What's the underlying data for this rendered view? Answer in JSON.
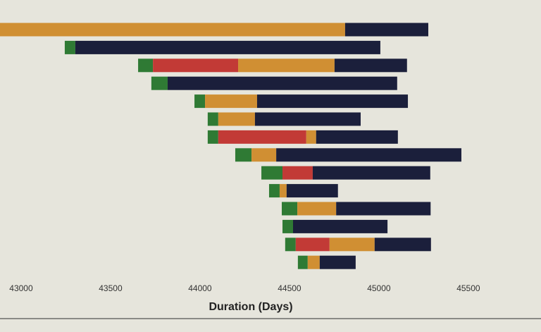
{
  "chart_data": {
    "type": "gantt-bar",
    "x_label": "Duration (Days)",
    "categories": [
      null,
      null,
      null,
      null,
      null,
      null,
      null,
      null,
      null,
      null,
      null,
      null,
      null,
      null
    ],
    "series": [
      {
        "color": "transparent",
        "values": [
          42882,
          43244,
          43654,
          43728,
          43969,
          44043,
          44043,
          44197,
          44343,
          44386,
          44457,
          44461,
          44476,
          44547
        ]
      },
      {
        "color": "#2f7a34",
        "values": [
          null,
          59,
          83,
          91,
          59,
          59,
          59,
          91,
          118,
          59,
          87,
          59,
          59,
          55
        ]
      },
      {
        "color": "#c23a36",
        "values": [
          null,
          null,
          476,
          null,
          null,
          null,
          492,
          null,
          169,
          null,
          null,
          null,
          189,
          null
        ]
      },
      {
        "color": "#d08f33",
        "values": [
          1929,
          null,
          539,
          null,
          291,
          205,
          55,
          138,
          null,
          39,
          217,
          null,
          252,
          67
        ]
      },
      {
        "color": "#1b1f3b",
        "values": [
          465,
          1705,
          405,
          1283,
          843,
          591,
          457,
          1035,
          657,
          287,
          528,
          528,
          315,
          201
        ]
      }
    ],
    "xlim": [
      42882,
      45906
    ],
    "xticks": [
      43000,
      43500,
      44000,
      44500,
      45000,
      45500
    ],
    "grid": false
  }
}
